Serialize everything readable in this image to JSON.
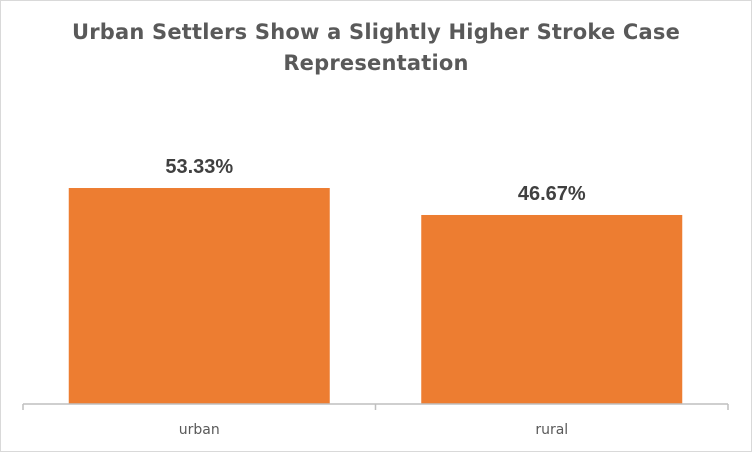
{
  "chart_data": {
    "type": "bar",
    "title": "Urban Settlers Show a Slightly Higher Stroke Case Representation",
    "categories": [
      "urban",
      "rural"
    ],
    "values": [
      53.33,
      46.67
    ],
    "data_labels": [
      "53.33%",
      "46.67%"
    ],
    "xlabel": "",
    "ylabel": "",
    "ylim": [
      0,
      60
    ],
    "grid": false,
    "legend": "none",
    "bar_color": "#ED7D31",
    "axis_color": "#BFBFBF"
  }
}
